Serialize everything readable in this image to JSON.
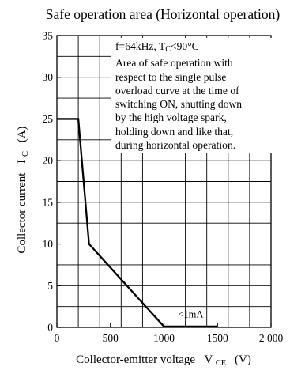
{
  "chart_data": {
    "type": "line",
    "title": "Safe operation area (Horizontal operation)",
    "xlabel": "Collector-emitter voltage",
    "xlabel_symbol": "V",
    "xlabel_subscript": "CE",
    "xlabel_unit": "(V)",
    "ylabel": "Collector current",
    "ylabel_symbol": "I",
    "ylabel_subscript": "C",
    "ylabel_unit": "(A)",
    "xlim": [
      0,
      2000
    ],
    "ylim": [
      0,
      35
    ],
    "x_ticks": [
      0,
      500,
      1000,
      1500,
      2000
    ],
    "x_tick_labels": [
      "0",
      "500",
      "1000",
      "1500",
      "2 000"
    ],
    "y_ticks": [
      0,
      5,
      10,
      15,
      20,
      25,
      30,
      35
    ],
    "y_tick_labels": [
      "0",
      "5",
      "10",
      "15",
      "20",
      "25",
      "30",
      "35"
    ],
    "x_grid_step": 200,
    "y_grid_step": 2.5,
    "grid": true,
    "series": [
      {
        "x": [
          0,
          200,
          300,
          1000,
          1500
        ],
        "y": [
          25,
          25,
          10,
          0.1,
          0.1
        ]
      }
    ],
    "annotations": [
      {
        "text": "<1mA",
        "x": 1250,
        "y": 1.2
      }
    ],
    "note": {
      "condition_prefix": "f=64kHz, T",
      "condition_sub": "C",
      "condition_suffix": "<90°C",
      "lines": [
        "Area of safe operation with",
        "respect to the single pulse",
        "overload curve at the time of",
        "switching ON, shutting down",
        "by the high voltage spark,",
        "holding down and like that,",
        "during horizontal operation."
      ]
    }
  }
}
